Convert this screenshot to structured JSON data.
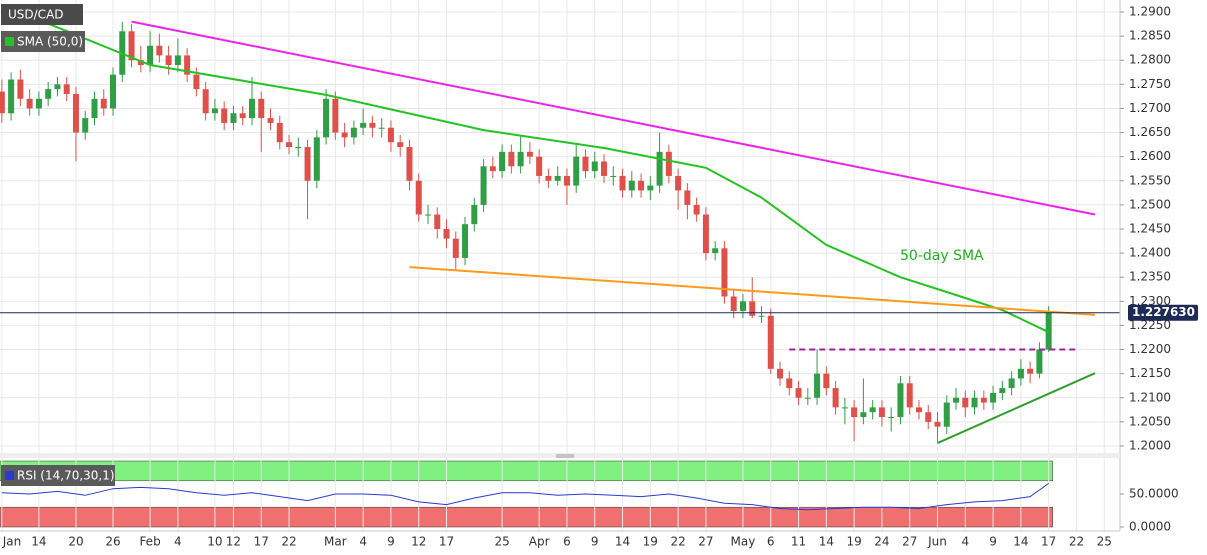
{
  "chart_data": {
    "type": "candlestick",
    "title": "USD/CAD",
    "up_color": "#2f9e44",
    "down_color": "#e0504a",
    "grid": true,
    "xlim": [
      -0.2,
      120.7
    ],
    "xticks": [
      {
        "value": 0,
        "label": "Jan"
      },
      {
        "value": 4,
        "label": "14"
      },
      {
        "value": 8,
        "label": "20"
      },
      {
        "value": 12,
        "label": "26"
      },
      {
        "value": 16,
        "label": "Feb"
      },
      {
        "value": 19,
        "label": "4"
      },
      {
        "value": 23,
        "label": "10"
      },
      {
        "value": 25,
        "label": "12"
      },
      {
        "value": 28,
        "label": "17"
      },
      {
        "value": 31,
        "label": "22"
      },
      {
        "value": 36,
        "label": "Mar"
      },
      {
        "value": 39,
        "label": "4"
      },
      {
        "value": 42,
        "label": "9"
      },
      {
        "value": 45,
        "label": "12"
      },
      {
        "value": 48,
        "label": "17"
      },
      {
        "value": 54,
        "label": "25"
      },
      {
        "value": 58,
        "label": "Apr"
      },
      {
        "value": 61,
        "label": "6"
      },
      {
        "value": 64,
        "label": "9"
      },
      {
        "value": 67,
        "label": "14"
      },
      {
        "value": 70,
        "label": "19"
      },
      {
        "value": 73,
        "label": "22"
      },
      {
        "value": 76,
        "label": "27"
      },
      {
        "value": 80,
        "label": "May"
      },
      {
        "value": 83,
        "label": "6"
      },
      {
        "value": 86,
        "label": "11"
      },
      {
        "value": 89,
        "label": "14"
      },
      {
        "value": 92,
        "label": "19"
      },
      {
        "value": 95,
        "label": "24"
      },
      {
        "value": 98,
        "label": "27"
      },
      {
        "value": 101,
        "label": "Jun"
      },
      {
        "value": 104,
        "label": "4"
      },
      {
        "value": 107,
        "label": "9"
      },
      {
        "value": 110,
        "label": "14"
      },
      {
        "value": 113,
        "label": "17"
      },
      {
        "value": 116,
        "label": "22"
      },
      {
        "value": 119,
        "label": "25"
      }
    ],
    "ylim": [
      1.19875,
      1.29249
    ],
    "yticks": [
      {
        "value": 1.2,
        "label": "1.2000"
      },
      {
        "value": 1.205,
        "label": "1.2050"
      },
      {
        "value": 1.21,
        "label": "1.2100"
      },
      {
        "value": 1.215,
        "label": "1.2150"
      },
      {
        "value": 1.22,
        "label": "1.2200"
      },
      {
        "value": 1.225,
        "label": "1.2250"
      },
      {
        "value": 1.23,
        "label": "1.2300"
      },
      {
        "value": 1.235,
        "label": "1.2350"
      },
      {
        "value": 1.24,
        "label": "1.2400"
      },
      {
        "value": 1.245,
        "label": "1.2450"
      },
      {
        "value": 1.25,
        "label": "1.2500"
      },
      {
        "value": 1.255,
        "label": "1.2550"
      },
      {
        "value": 1.26,
        "label": "1.2600"
      },
      {
        "value": 1.265,
        "label": "1.2650"
      },
      {
        "value": 1.27,
        "label": "1.2700"
      },
      {
        "value": 1.275,
        "label": "1.2750"
      },
      {
        "value": 1.28,
        "label": "1.2800"
      },
      {
        "value": 1.285,
        "label": "1.2850"
      },
      {
        "value": 1.29,
        "label": "1.2900"
      }
    ],
    "open": [
      1.2735,
      1.269,
      1.276,
      1.272,
      1.27,
      1.272,
      1.274,
      1.275,
      1.273,
      1.265,
      1.268,
      1.272,
      1.27,
      1.277,
      1.286,
      1.28,
      1.279,
      1.283,
      1.281,
      1.279,
      1.281,
      1.277,
      1.274,
      1.269,
      1.27,
      1.267,
      1.269,
      1.268,
      1.272,
      1.268,
      1.267,
      1.263,
      1.262,
      1.262,
      1.255,
      1.264,
      1.272,
      1.265,
      1.264,
      1.266,
      1.267,
      1.266,
      1.266,
      1.263,
      1.262,
      1.255,
      1.248,
      1.248,
      1.245,
      1.243,
      1.239,
      1.246,
      1.25,
      1.258,
      1.257,
      1.261,
      1.258,
      1.261,
      1.26,
      1.256,
      1.255,
      1.256,
      1.254,
      1.26,
      1.257,
      1.259,
      1.256,
      1.256,
      1.253,
      1.255,
      1.253,
      1.254,
      1.261,
      1.256,
      1.253,
      1.25,
      1.248,
      1.24,
      1.241,
      1.231,
      1.228,
      1.23,
      1.227,
      1.227,
      1.216,
      1.214,
      1.212,
      1.21,
      1.21,
      1.215,
      1.212,
      1.208,
      1.208,
      1.206,
      1.207,
      1.208,
      1.206,
      1.206,
      1.213,
      1.208,
      1.207,
      1.205,
      1.204,
      1.209,
      1.21,
      1.208,
      1.21,
      1.209,
      1.211,
      1.212,
      1.214,
      1.216,
      1.215,
      1.22
    ],
    "high": [
      1.276,
      1.2775,
      1.278,
      1.274,
      1.2735,
      1.2755,
      1.2765,
      1.2765,
      1.2745,
      1.2695,
      1.2735,
      1.274,
      1.2785,
      1.288,
      1.2875,
      1.283,
      1.286,
      1.2855,
      1.283,
      1.2845,
      1.2825,
      1.2785,
      1.2755,
      1.272,
      1.2715,
      1.2705,
      1.2705,
      1.2765,
      1.2735,
      1.27,
      1.2685,
      1.2645,
      1.264,
      1.2635,
      1.2655,
      1.274,
      1.2735,
      1.267,
      1.2675,
      1.27,
      1.2685,
      1.268,
      1.2675,
      1.2645,
      1.2635,
      1.2565,
      1.25,
      1.2495,
      1.247,
      1.2445,
      1.2475,
      1.2515,
      1.2595,
      1.26,
      1.2625,
      1.2625,
      1.2645,
      1.263,
      1.2615,
      1.2575,
      1.258,
      1.2575,
      1.2625,
      1.2615,
      1.261,
      1.2605,
      1.258,
      1.2575,
      1.257,
      1.2565,
      1.256,
      1.265,
      1.2625,
      1.2575,
      1.2545,
      1.2515,
      1.2495,
      1.2425,
      1.2425,
      1.2325,
      1.2315,
      1.235,
      1.229,
      1.2285,
      1.2175,
      1.2155,
      1.2135,
      1.212,
      1.22,
      1.2165,
      1.2135,
      1.21,
      1.2095,
      1.214,
      1.2095,
      1.2095,
      1.208,
      1.2145,
      1.2145,
      1.2095,
      1.2085,
      1.207,
      1.2105,
      1.212,
      1.2115,
      1.2115,
      1.2115,
      1.2125,
      1.2135,
      1.2155,
      1.218,
      1.2175,
      1.2215,
      1.229
    ],
    "low": [
      1.267,
      1.2675,
      1.2705,
      1.2685,
      1.2685,
      1.2705,
      1.2725,
      1.2715,
      1.259,
      1.2635,
      1.2665,
      1.2685,
      1.2685,
      1.2755,
      1.2785,
      1.2775,
      1.2775,
      1.2795,
      1.277,
      1.2775,
      1.2755,
      1.2725,
      1.2675,
      1.2675,
      1.2655,
      1.2655,
      1.2665,
      1.2665,
      1.261,
      1.2655,
      1.2615,
      1.2605,
      1.26,
      1.247,
      1.2535,
      1.2625,
      1.2635,
      1.262,
      1.2625,
      1.2645,
      1.264,
      1.264,
      1.261,
      1.26,
      1.253,
      1.2465,
      1.246,
      1.243,
      1.241,
      1.2365,
      1.2375,
      1.2445,
      1.2485,
      1.2555,
      1.2555,
      1.2565,
      1.2565,
      1.2585,
      1.2545,
      1.2535,
      1.254,
      1.25,
      1.2525,
      1.2555,
      1.2555,
      1.2545,
      1.254,
      1.2515,
      1.2515,
      1.2515,
      1.251,
      1.2525,
      1.2545,
      1.249,
      1.247,
      1.2465,
      1.2385,
      1.2385,
      1.2295,
      1.2265,
      1.2265,
      1.2265,
      1.2255,
      1.215,
      1.2125,
      1.2105,
      1.2085,
      1.2085,
      1.2085,
      1.2105,
      1.2065,
      1.2045,
      1.201,
      1.2045,
      1.2055,
      1.204,
      1.203,
      1.2045,
      1.2065,
      1.2055,
      1.2035,
      1.2007,
      1.2025,
      1.2075,
      1.206,
      1.2065,
      1.2075,
      1.2075,
      1.2095,
      1.2105,
      1.2125,
      1.213,
      1.214,
      1.2195
    ],
    "close": [
      1.269,
      1.276,
      1.272,
      1.27,
      1.272,
      1.274,
      1.275,
      1.273,
      1.265,
      1.268,
      1.272,
      1.27,
      1.277,
      1.286,
      1.28,
      1.279,
      1.283,
      1.281,
      1.279,
      1.281,
      1.277,
      1.274,
      1.269,
      1.27,
      1.267,
      1.269,
      1.268,
      1.272,
      1.268,
      1.267,
      1.263,
      1.262,
      1.262,
      1.255,
      1.264,
      1.272,
      1.265,
      1.264,
      1.266,
      1.267,
      1.266,
      1.266,
      1.263,
      1.262,
      1.255,
      1.248,
      1.248,
      1.245,
      1.243,
      1.239,
      1.246,
      1.25,
      1.258,
      1.257,
      1.261,
      1.258,
      1.261,
      1.26,
      1.256,
      1.255,
      1.256,
      1.254,
      1.26,
      1.257,
      1.259,
      1.256,
      1.256,
      1.253,
      1.255,
      1.253,
      1.254,
      1.261,
      1.256,
      1.253,
      1.25,
      1.248,
      1.24,
      1.241,
      1.231,
      1.228,
      1.23,
      1.227,
      1.227,
      1.216,
      1.214,
      1.212,
      1.21,
      1.21,
      1.215,
      1.212,
      1.208,
      1.208,
      1.206,
      1.207,
      1.208,
      1.206,
      1.206,
      1.213,
      1.208,
      1.207,
      1.205,
      1.204,
      1.209,
      1.21,
      1.208,
      1.21,
      1.209,
      1.211,
      1.212,
      1.214,
      1.216,
      1.215,
      1.22,
      1.22763
    ],
    "last_price": {
      "value": 1.22763,
      "label": "1.227630",
      "color": "#1c2a55"
    },
    "sma": {
      "name": "SMA (50,0)",
      "color": "#22c322",
      "x": [
        0,
        16,
        35,
        52,
        65,
        76,
        82,
        89,
        97,
        103,
        108,
        113
      ],
      "values": [
        1.2915,
        1.279,
        1.2728,
        1.2655,
        1.2618,
        1.2577,
        1.2515,
        1.2417,
        1.235,
        1.2313,
        1.2282,
        1.2236
      ]
    },
    "annotation": {
      "text": "50-day SMA",
      "color": "#22b022"
    },
    "trendlines": [
      {
        "color": "#ee22ee",
        "dashed": false,
        "points": [
          [
            14,
            1.288
          ],
          [
            118,
            1.248
          ]
        ]
      },
      {
        "color": "#ff9a1a",
        "dashed": false,
        "points": [
          [
            44,
            1.2371
          ],
          [
            118,
            1.2272
          ]
        ]
      },
      {
        "color": "#2e9e2e",
        "dashed": false,
        "points": [
          [
            101,
            1.2006
          ],
          [
            118,
            1.2151
          ]
        ]
      },
      {
        "color": "#a020a0",
        "dashed": true,
        "points": [
          [
            85,
            1.22
          ],
          [
            116,
            1.22
          ]
        ]
      }
    ],
    "rsi": {
      "name": "RSI (14,70,30,1)",
      "color": "#2a3ad0",
      "ylim": [
        0,
        100
      ],
      "yticks": [
        {
          "value": 50,
          "label": "50.0000"
        },
        {
          "value": 0,
          "label": "0.0000"
        }
      ],
      "overbought": 70,
      "oversold": 30,
      "overbought_color": "#80f080",
      "oversold_color": "#f07070",
      "x": [
        0,
        3,
        6,
        9,
        12,
        15,
        18,
        21,
        24,
        27,
        30,
        33,
        36,
        39,
        42,
        45,
        48,
        51,
        54,
        57,
        60,
        63,
        66,
        69,
        72,
        75,
        78,
        81,
        84,
        87,
        90,
        93,
        96,
        99,
        102,
        105,
        108,
        111,
        113
      ],
      "values": [
        52,
        50,
        54,
        48,
        58,
        60,
        58,
        52,
        48,
        52,
        46,
        40,
        50,
        50,
        48,
        38,
        34,
        44,
        52,
        52,
        48,
        50,
        48,
        46,
        50,
        44,
        36,
        34,
        28,
        26,
        28,
        30,
        30,
        28,
        34,
        38,
        40,
        46,
        66
      ]
    }
  }
}
